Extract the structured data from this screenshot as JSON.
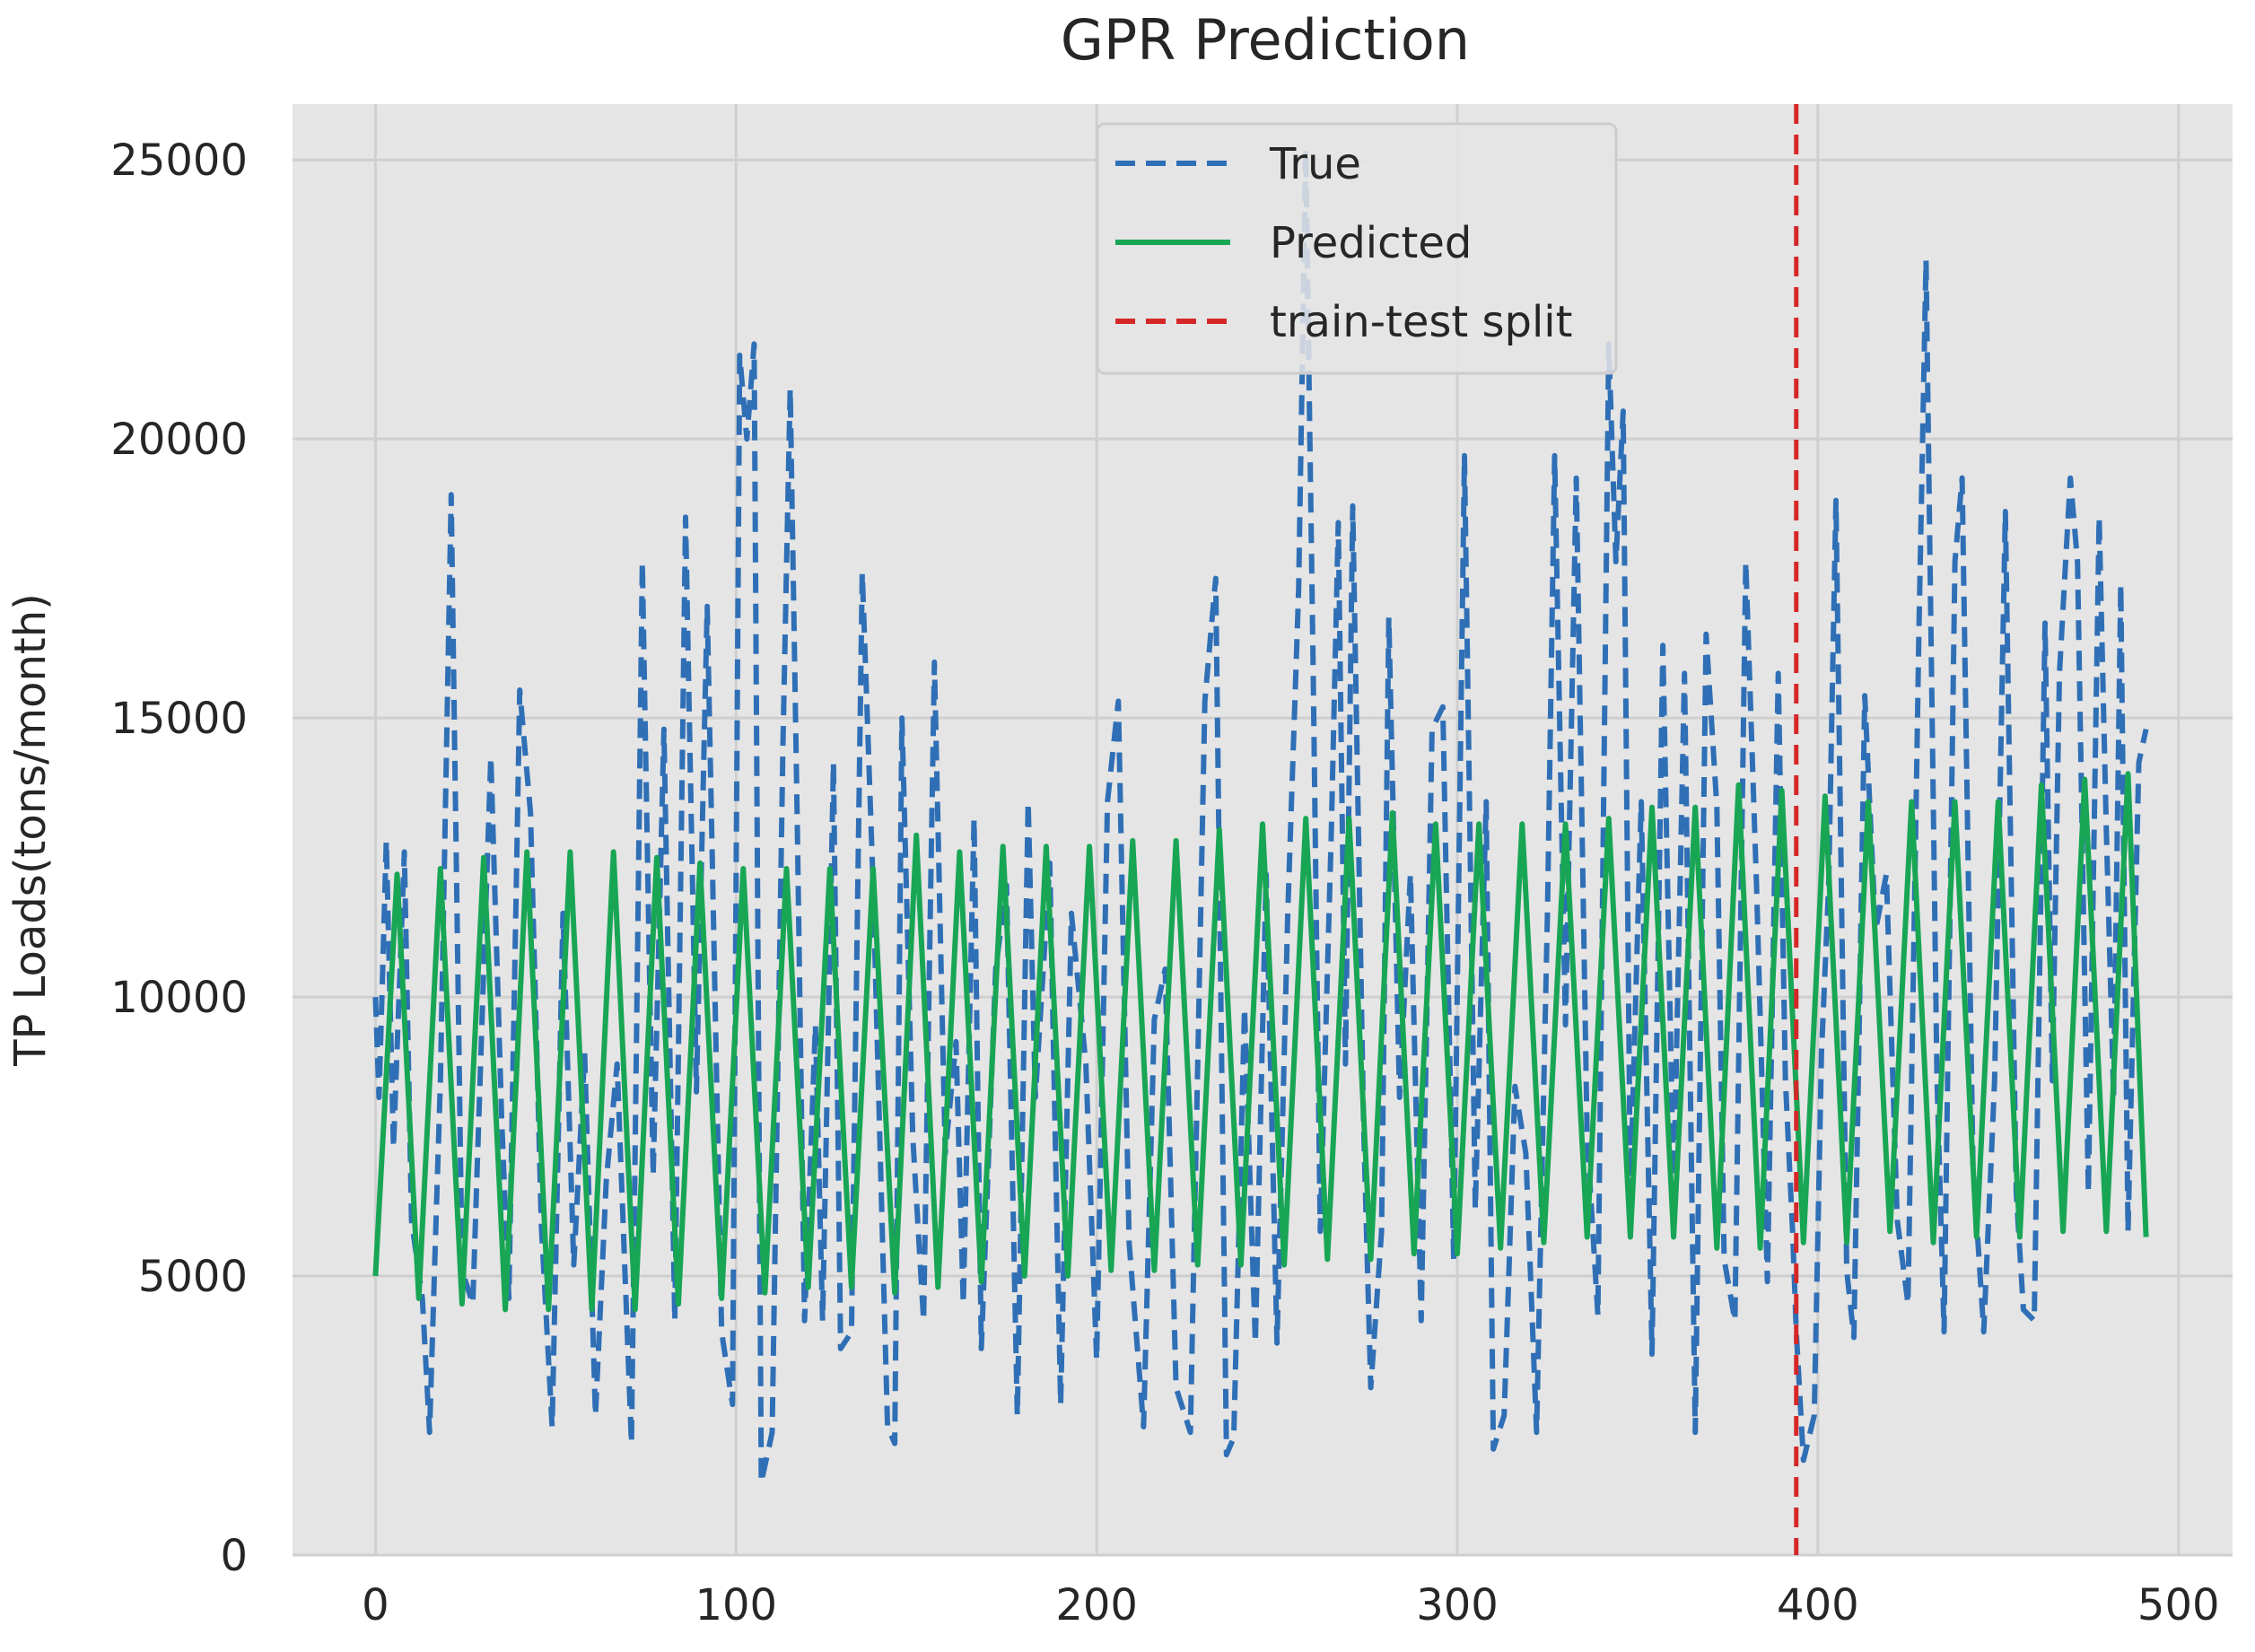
{
  "chart_data": {
    "type": "line",
    "title": "GPR Prediction",
    "xlabel": "",
    "ylabel": "TP Loads(tons/month)",
    "xlim": [
      -23,
      515
    ],
    "ylim": [
      0,
      26000
    ],
    "xticks": [
      0,
      100,
      200,
      300,
      400,
      500
    ],
    "yticks": [
      0,
      5000,
      10000,
      15000,
      20000,
      25000
    ],
    "xtick_labels": [
      "0",
      "100",
      "200",
      "300",
      "400",
      "500"
    ],
    "ytick_labels": [
      "0",
      "5000",
      "10000",
      "15000",
      "20000",
      "25000"
    ],
    "grid": true,
    "legend_position": "top-center",
    "background": "#e5e5e5",
    "grid_color": "#cfcfcf",
    "n_points": 492,
    "series": [
      {
        "name": "True",
        "color": "#2f6fb6",
        "style": "dashed",
        "sampled_points": [
          [
            0,
            10000
          ],
          [
            1,
            8200
          ],
          [
            3,
            12800
          ],
          [
            5,
            7300
          ],
          [
            8,
            12600
          ],
          [
            10,
            6000
          ],
          [
            13,
            4600
          ],
          [
            15,
            2200
          ],
          [
            18,
            8500
          ],
          [
            21,
            19000
          ],
          [
            24,
            5100
          ],
          [
            27,
            4500
          ],
          [
            30,
            10500
          ],
          [
            32,
            14300
          ],
          [
            35,
            7800
          ],
          [
            37,
            4600
          ],
          [
            40,
            15500
          ],
          [
            43,
            13300
          ],
          [
            46,
            5900
          ],
          [
            49,
            2300
          ],
          [
            52,
            11500
          ],
          [
            55,
            5200
          ],
          [
            58,
            9000
          ],
          [
            61,
            2500
          ],
          [
            64,
            6700
          ],
          [
            67,
            8800
          ],
          [
            71,
            2000
          ],
          [
            74,
            17800
          ],
          [
            77,
            6800
          ],
          [
            80,
            14800
          ],
          [
            83,
            4200
          ],
          [
            86,
            18600
          ],
          [
            89,
            8300
          ],
          [
            92,
            17000
          ],
          [
            96,
            4000
          ],
          [
            99,
            2700
          ],
          [
            101,
            21500
          ],
          [
            103,
            20000
          ],
          [
            105,
            21700
          ],
          [
            107,
            1300
          ],
          [
            110,
            2200
          ],
          [
            113,
            14500
          ],
          [
            115,
            20900
          ],
          [
            117,
            13000
          ],
          [
            119,
            4200
          ],
          [
            122,
            9500
          ],
          [
            124,
            4200
          ],
          [
            127,
            14200
          ],
          [
            129,
            3700
          ],
          [
            132,
            4000
          ],
          [
            135,
            17600
          ],
          [
            138,
            12000
          ],
          [
            142,
            2300
          ],
          [
            144,
            2000
          ],
          [
            146,
            15000
          ],
          [
            149,
            7500
          ],
          [
            152,
            4200
          ],
          [
            155,
            16000
          ],
          [
            158,
            7200
          ],
          [
            161,
            9200
          ],
          [
            163,
            4500
          ],
          [
            166,
            13200
          ],
          [
            168,
            3700
          ],
          [
            172,
            10500
          ],
          [
            175,
            12000
          ],
          [
            178,
            2500
          ],
          [
            181,
            13500
          ],
          [
            183,
            8200
          ],
          [
            187,
            12400
          ],
          [
            190,
            2700
          ],
          [
            193,
            11500
          ],
          [
            197,
            8800
          ],
          [
            200,
            3500
          ],
          [
            203,
            13500
          ],
          [
            206,
            15300
          ],
          [
            209,
            5600
          ],
          [
            213,
            2300
          ],
          [
            216,
            9600
          ],
          [
            219,
            10500
          ],
          [
            222,
            3000
          ],
          [
            226,
            2200
          ],
          [
            230,
            15300
          ],
          [
            233,
            17500
          ],
          [
            236,
            1800
          ],
          [
            238,
            2100
          ],
          [
            241,
            9800
          ],
          [
            244,
            3800
          ],
          [
            247,
            12200
          ],
          [
            250,
            3800
          ],
          [
            253,
            11500
          ],
          [
            256,
            17300
          ],
          [
            258,
            25200
          ],
          [
            260,
            16000
          ],
          [
            262,
            5800
          ],
          [
            265,
            12800
          ],
          [
            267,
            18500
          ],
          [
            269,
            8800
          ],
          [
            271,
            18800
          ],
          [
            274,
            7800
          ],
          [
            276,
            3000
          ],
          [
            279,
            5800
          ],
          [
            281,
            16800
          ],
          [
            284,
            8200
          ],
          [
            287,
            12200
          ],
          [
            290,
            4200
          ],
          [
            293,
            14800
          ],
          [
            296,
            15200
          ],
          [
            299,
            5300
          ],
          [
            302,
            19700
          ],
          [
            305,
            6200
          ],
          [
            308,
            13500
          ],
          [
            310,
            1900
          ],
          [
            313,
            2500
          ],
          [
            316,
            8400
          ],
          [
            319,
            7200
          ],
          [
            322,
            2200
          ],
          [
            325,
            11500
          ],
          [
            327,
            19700
          ],
          [
            330,
            9500
          ],
          [
            333,
            19300
          ],
          [
            336,
            7500
          ],
          [
            339,
            4300
          ],
          [
            342,
            21700
          ],
          [
            344,
            17800
          ],
          [
            346,
            20500
          ],
          [
            348,
            6500
          ],
          [
            351,
            13500
          ],
          [
            354,
            3600
          ],
          [
            357,
            16300
          ],
          [
            360,
            6500
          ],
          [
            363,
            15800
          ],
          [
            366,
            2200
          ],
          [
            369,
            16500
          ],
          [
            372,
            13400
          ],
          [
            374,
            5300
          ],
          [
            377,
            4200
          ],
          [
            380,
            17800
          ],
          [
            383,
            12000
          ],
          [
            386,
            4900
          ],
          [
            389,
            15800
          ],
          [
            391,
            8500
          ],
          [
            393,
            5800
          ],
          [
            394,
            4000
          ],
          [
            396,
            1700
          ],
          [
            399,
            2500
          ],
          [
            401,
            9000
          ],
          [
            403,
            12000
          ],
          [
            405,
            18900
          ],
          [
            408,
            5100
          ],
          [
            410,
            3900
          ],
          [
            413,
            15400
          ],
          [
            416,
            11200
          ],
          [
            419,
            12200
          ],
          [
            422,
            6000
          ],
          [
            425,
            4500
          ],
          [
            428,
            16500
          ],
          [
            430,
            23200
          ],
          [
            433,
            8600
          ],
          [
            435,
            4000
          ],
          [
            438,
            17800
          ],
          [
            440,
            19300
          ],
          [
            443,
            7000
          ],
          [
            446,
            4000
          ],
          [
            449,
            8500
          ],
          [
            452,
            18700
          ],
          [
            455,
            6500
          ],
          [
            457,
            4400
          ],
          [
            460,
            4200
          ],
          [
            463,
            16700
          ],
          [
            465,
            8500
          ],
          [
            467,
            15800
          ],
          [
            470,
            19300
          ],
          [
            472,
            17800
          ],
          [
            475,
            6500
          ],
          [
            478,
            18600
          ],
          [
            480,
            13000
          ],
          [
            482,
            8200
          ],
          [
            484,
            17400
          ],
          [
            486,
            5800
          ],
          [
            489,
            14200
          ],
          [
            491,
            14800
          ]
        ]
      },
      {
        "name": "Predicted",
        "color": "#18a655",
        "style": "solid",
        "sampled_points": [
          [
            0,
            5000
          ],
          [
            6,
            12200
          ],
          [
            12,
            4600
          ],
          [
            18,
            12300
          ],
          [
            24,
            4500
          ],
          [
            30,
            12500
          ],
          [
            36,
            4400
          ],
          [
            42,
            12600
          ],
          [
            48,
            4400
          ],
          [
            54,
            12600
          ],
          [
            60,
            4400
          ],
          [
            66,
            12600
          ],
          [
            72,
            4400
          ],
          [
            78,
            12500
          ],
          [
            84,
            4500
          ],
          [
            90,
            12400
          ],
          [
            96,
            4600
          ],
          [
            102,
            12300
          ],
          [
            108,
            4700
          ],
          [
            114,
            12300
          ],
          [
            120,
            4800
          ],
          [
            126,
            12300
          ],
          [
            132,
            4800
          ],
          [
            138,
            12300
          ],
          [
            144,
            4700
          ],
          [
            150,
            12900
          ],
          [
            156,
            4800
          ],
          [
            162,
            12600
          ],
          [
            168,
            4900
          ],
          [
            174,
            12700
          ],
          [
            180,
            5000
          ],
          [
            186,
            12700
          ],
          [
            192,
            5000
          ],
          [
            198,
            12700
          ],
          [
            204,
            5100
          ],
          [
            210,
            12800
          ],
          [
            216,
            5100
          ],
          [
            222,
            12800
          ],
          [
            228,
            5200
          ],
          [
            234,
            13000
          ],
          [
            240,
            5200
          ],
          [
            246,
            13100
          ],
          [
            252,
            5200
          ],
          [
            258,
            13200
          ],
          [
            264,
            5300
          ],
          [
            270,
            13200
          ],
          [
            276,
            5300
          ],
          [
            282,
            13300
          ],
          [
            288,
            5400
          ],
          [
            294,
            13100
          ],
          [
            300,
            5400
          ],
          [
            306,
            13100
          ],
          [
            312,
            5500
          ],
          [
            318,
            13100
          ],
          [
            324,
            5600
          ],
          [
            330,
            13100
          ],
          [
            336,
            5700
          ],
          [
            342,
            13200
          ],
          [
            348,
            5700
          ],
          [
            354,
            13400
          ],
          [
            360,
            5700
          ],
          [
            366,
            13400
          ],
          [
            372,
            5500
          ],
          [
            378,
            13800
          ],
          [
            384,
            5500
          ],
          [
            390,
            13700
          ],
          [
            396,
            5600
          ],
          [
            402,
            13600
          ],
          [
            408,
            5600
          ],
          [
            414,
            13500
          ],
          [
            420,
            5800
          ],
          [
            426,
            13500
          ],
          [
            432,
            5600
          ],
          [
            438,
            13500
          ],
          [
            444,
            5700
          ],
          [
            450,
            13500
          ],
          [
            456,
            5700
          ],
          [
            462,
            13800
          ],
          [
            468,
            5800
          ],
          [
            474,
            13900
          ],
          [
            480,
            5800
          ],
          [
            486,
            14000
          ],
          [
            491,
            5700
          ]
        ]
      }
    ],
    "vline": {
      "name": "train-test split",
      "x": 394,
      "color": "#d62728",
      "style": "dashed"
    }
  }
}
